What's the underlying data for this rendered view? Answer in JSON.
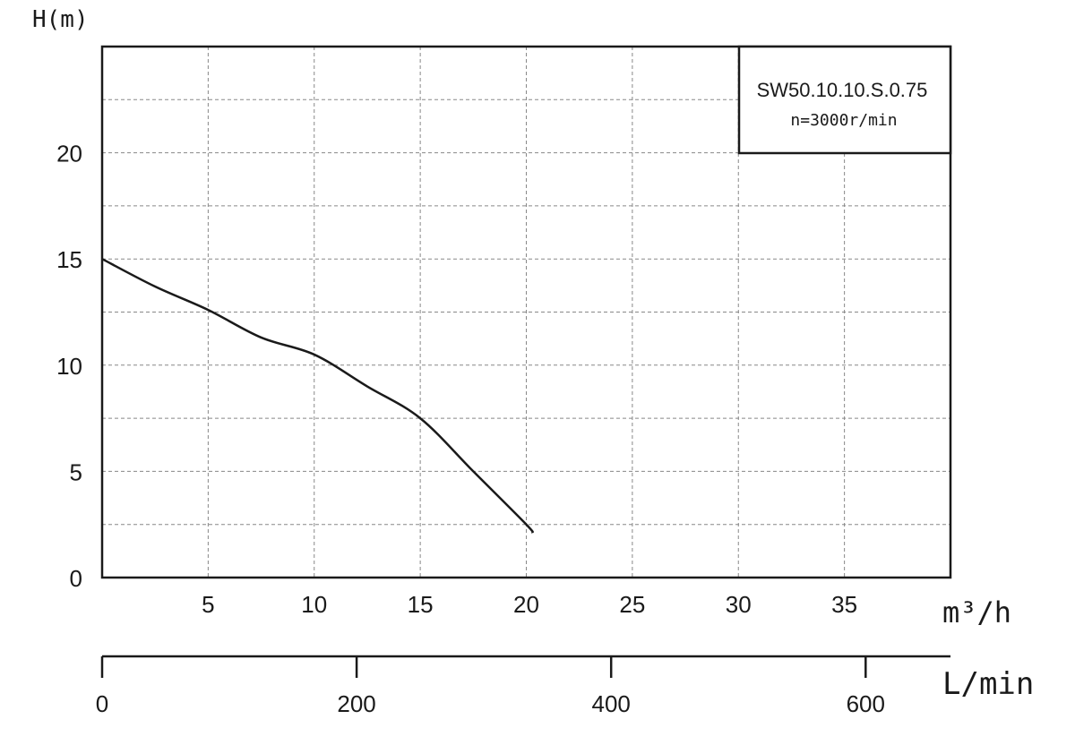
{
  "chart_data": {
    "type": "line",
    "ylabel": "H(m)",
    "xlabel": "m³/h",
    "xlabel_secondary": "L/min",
    "xlim": [
      0,
      40
    ],
    "ylim": [
      0,
      25
    ],
    "grid": true,
    "x_ticks": [
      5,
      10,
      15,
      20,
      25,
      30,
      35
    ],
    "y_ticks": [
      0,
      5,
      10,
      15,
      20
    ],
    "secondary_x_ticks": [
      0,
      200,
      400,
      600
    ],
    "legend": {
      "position": "top-right",
      "model": "SW50.10.10.S.0.75",
      "speed": "n=3000r/min"
    },
    "series": [
      {
        "x": [
          0,
          2.5,
          5,
          7.5,
          10,
          12.5,
          15,
          17.5,
          20,
          20.3
        ],
        "y": [
          15.0,
          13.7,
          12.6,
          11.3,
          10.5,
          9.0,
          7.5,
          5.0,
          2.5,
          2.1
        ]
      }
    ],
    "line_color": "#1a1a1a"
  }
}
